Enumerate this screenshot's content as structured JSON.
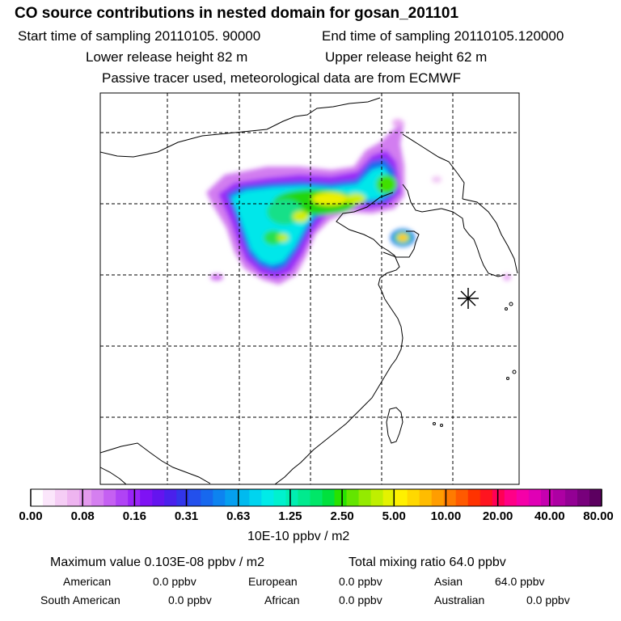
{
  "header": {
    "title": "CO  source contributions in nested domain for gosan_201101",
    "start_time": "Start time of sampling 20110105. 90000",
    "end_time": "End time of sampling 20110105.120000",
    "lower_release": "Lower release height   82 m",
    "upper_release": "Upper release height   62 m",
    "tracer_note": "Passive tracer used, meteorological data are from ECMWF"
  },
  "colorbar": {
    "ticks": [
      "0.00",
      "0.08",
      "0.16",
      "0.31",
      "0.63",
      "1.25",
      "2.50",
      "5.00",
      "10.00",
      "20.00",
      "40.00",
      "80.00"
    ],
    "units": "10E-10 ppbv / m2",
    "colors": [
      "#ffffff",
      "#fbe6fb",
      "#f5cdf5",
      "#eeb4f0",
      "#e49aee",
      "#d57ff0",
      "#c560f2",
      "#b043f5",
      "#9a24f7",
      "#7f12f4",
      "#6414ef",
      "#4a20ec",
      "#3235ea",
      "#2350ec",
      "#1768ee",
      "#0d83f0",
      "#059ff0",
      "#00baef",
      "#00d4ef",
      "#00ebe8",
      "#00f1ce",
      "#00eeb1",
      "#00ea8e",
      "#00e668",
      "#00e13d",
      "#28e200",
      "#63e500",
      "#94ea00",
      "#bfef00",
      "#e4f200",
      "#fff000",
      "#ffd800",
      "#ffbc00",
      "#ff9d00",
      "#ff7b00",
      "#ff5a00",
      "#ff3300",
      "#ff1420",
      "#ff0055",
      "#ff0087",
      "#f500a8",
      "#e000b5",
      "#c600b0",
      "#ad00a3",
      "#930094",
      "#78007c",
      "#5c0060"
    ]
  },
  "summary": {
    "max_value": "Maximum value  0.103E-08 ppbv / m2",
    "total_mixing": "Total mixing ratio       64.0 ppbv",
    "sources": [
      {
        "label": "American",
        "value": "0.0 ppbv"
      },
      {
        "label": "European",
        "value": "0.0 ppbv"
      },
      {
        "label": "Asian",
        "value": "64.0 ppbv"
      },
      {
        "label": "South American",
        "value": "0.0 ppbv"
      },
      {
        "label": "African",
        "value": "0.0 ppbv"
      },
      {
        "label": "Australian",
        "value": "0.0 ppbv"
      }
    ]
  },
  "map": {
    "receptor_marker": "asterisk"
  }
}
